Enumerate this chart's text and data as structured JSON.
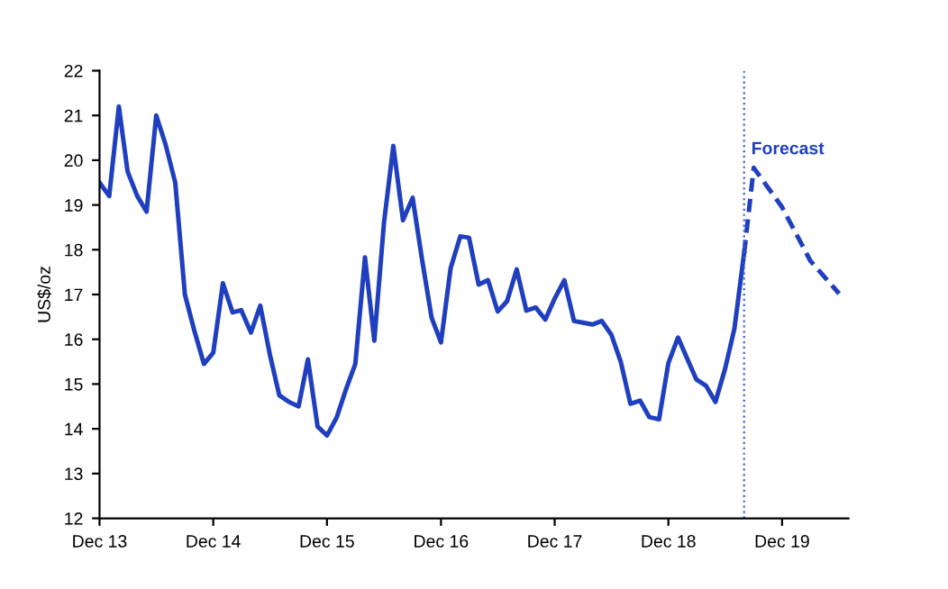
{
  "chart_data": {
    "type": "line",
    "ylabel": "US$/oz",
    "x": [
      "2013-12",
      "2014-01",
      "2014-02",
      "2014-03",
      "2014-04",
      "2014-05",
      "2014-06",
      "2014-07",
      "2014-08",
      "2014-09",
      "2014-10",
      "2014-11",
      "2014-12",
      "2015-01",
      "2015-02",
      "2015-03",
      "2015-04",
      "2015-05",
      "2015-06",
      "2015-07",
      "2015-08",
      "2015-09",
      "2015-10",
      "2015-11",
      "2015-12",
      "2016-01",
      "2016-02",
      "2016-03",
      "2016-04",
      "2016-05",
      "2016-06",
      "2016-07",
      "2016-08",
      "2016-09",
      "2016-10",
      "2016-11",
      "2016-12",
      "2017-01",
      "2017-02",
      "2017-03",
      "2017-04",
      "2017-05",
      "2017-06",
      "2017-07",
      "2017-08",
      "2017-09",
      "2017-10",
      "2017-11",
      "2017-12",
      "2018-01",
      "2018-02",
      "2018-03",
      "2018-04",
      "2018-05",
      "2018-06",
      "2018-07",
      "2018-08",
      "2018-09",
      "2018-10",
      "2018-11",
      "2018-12",
      "2019-01",
      "2019-02",
      "2019-03",
      "2019-04",
      "2019-05",
      "2019-06",
      "2019-07",
      "2019-08"
    ],
    "series": [
      {
        "color": "#1f3fbf",
        "line_style": "solid",
        "values": [
          19.5,
          19.2,
          21.2,
          19.75,
          19.2,
          18.85,
          21.0,
          20.35,
          19.5,
          17.0,
          16.2,
          15.45,
          15.7,
          17.25,
          16.6,
          16.65,
          16.15,
          16.75,
          15.65,
          14.75,
          14.6,
          14.5,
          15.55,
          14.05,
          13.85,
          14.25,
          14.9,
          15.45,
          17.83,
          15.97,
          18.6,
          20.32,
          18.66,
          19.16,
          17.79,
          16.48,
          15.93,
          17.59,
          18.3,
          18.27,
          17.22,
          17.32,
          16.62,
          16.85,
          17.56,
          16.64,
          16.71,
          16.44,
          16.91,
          17.32,
          16.41,
          16.37,
          16.33,
          16.41,
          16.1,
          15.5,
          14.56,
          14.63,
          14.26,
          14.21,
          15.47,
          16.04,
          15.54,
          15.1,
          14.96,
          14.6,
          15.34,
          16.24,
          17.92
        ]
      },
      {
        "color": "#1f3fbf",
        "line_style": "dashed",
        "x": [
          "2019-08",
          "2019-09",
          "2019-12",
          "2020-03",
          "2020-06"
        ],
        "values": [
          17.92,
          19.83,
          18.95,
          17.75,
          17.02
        ]
      }
    ],
    "xlim": [
      "2013-12",
      "2020-07"
    ],
    "xticks": [
      {
        "value": "2013-12",
        "label": "Dec 13"
      },
      {
        "value": "2014-12",
        "label": "Dec 14"
      },
      {
        "value": "2015-12",
        "label": "Dec 15"
      },
      {
        "value": "2016-12",
        "label": "Dec 16"
      },
      {
        "value": "2017-12",
        "label": "Dec 17"
      },
      {
        "value": "2018-12",
        "label": "Dec 18"
      },
      {
        "value": "2019-12",
        "label": "Dec 19"
      }
    ],
    "ylim": [
      12,
      22
    ],
    "yticks": [
      12,
      13,
      14,
      15,
      16,
      17,
      18,
      19,
      20,
      21,
      22
    ],
    "ref_lines": [
      {
        "axis": "x",
        "value": "2019-08",
        "label": null,
        "color": "#4060d0",
        "line_style": "dotted"
      }
    ],
    "annotations": [
      {
        "text": "Forecast",
        "x": "2019-09",
        "y": 19.83
      }
    ],
    "grid": false,
    "legend": false
  }
}
